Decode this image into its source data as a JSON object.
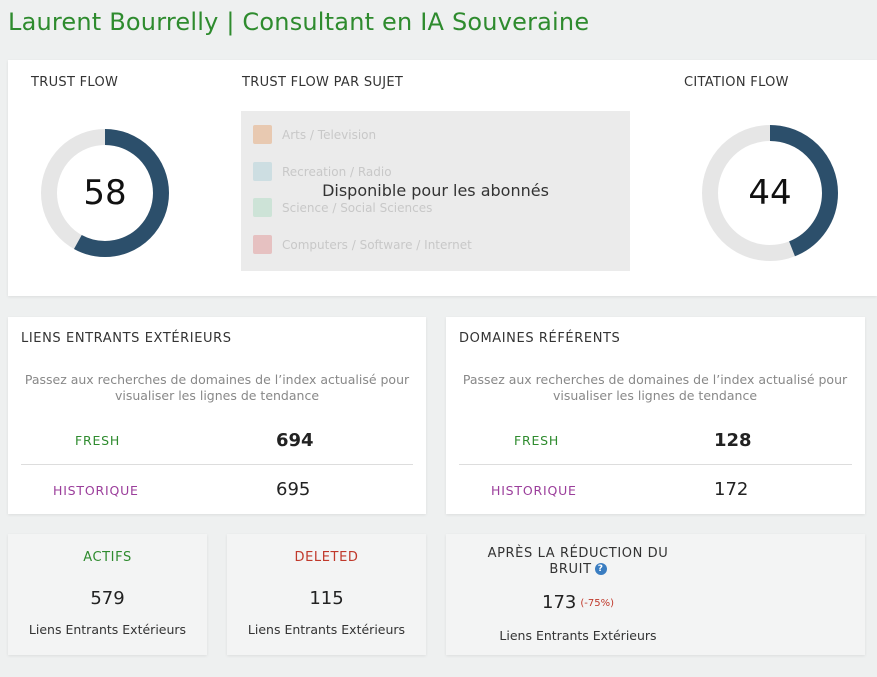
{
  "page": {
    "title": "Laurent Bourrelly | Consultant en IA Souveraine"
  },
  "trust_flow": {
    "label": "TRUST FLOW",
    "value": "58",
    "fraction": 0.58,
    "color": "#2c4f6b",
    "track_color": "#e6e6e6"
  },
  "citation_flow": {
    "label": "CITATION FLOW",
    "value": "44",
    "fraction": 0.44,
    "color": "#2c4f6b",
    "track_color": "#e6e6e6"
  },
  "topics": {
    "label": "TRUST FLOW PAR SUJET",
    "overlay": "Disponible pour les abonnés",
    "items": [
      {
        "label": "Arts / Television",
        "color": "#e5a06a"
      },
      {
        "label": "Recreation / Radio",
        "color": "#a9cfd6"
      },
      {
        "label": "Science / Social Sciences",
        "color": "#a9d9bf"
      },
      {
        "label": "Computers / Software / Internet",
        "color": "#e08f8f"
      }
    ]
  },
  "backlinks": {
    "title": "LIENS ENTRANTS EXTÉRIEURS",
    "desc": "Passez aux recherches de domaines de l’index actualisé pour visualiser les lignes de tendance",
    "fresh_label": "FRESH",
    "fresh_value": "694",
    "hist_label": "HISTORIQUE",
    "hist_value": "695"
  },
  "domains": {
    "title": "DOMAINES RÉFÉRENTS",
    "desc": "Passez aux recherches de domaines de l’index actualisé pour visualiser les lignes de tendance",
    "fresh_label": "FRESH",
    "fresh_value": "128",
    "hist_label": "HISTORIQUE",
    "hist_value": "172"
  },
  "actifs": {
    "title": "ACTIFS",
    "value": "579",
    "sub": "Liens Entrants Extérieurs",
    "color": "#2e8b2e"
  },
  "deleted": {
    "title": "DELETED",
    "value": "115",
    "sub": "Liens Entrants Extérieurs",
    "color": "#c0392b"
  },
  "noise": {
    "title_line1": "APRÈS LA RÉDUCTION DU",
    "title_line2": "BRUIT",
    "help_icon": "question-circle-icon",
    "value": "173",
    "pct": "(-75%)",
    "sub": "Liens Entrants Extérieurs"
  }
}
